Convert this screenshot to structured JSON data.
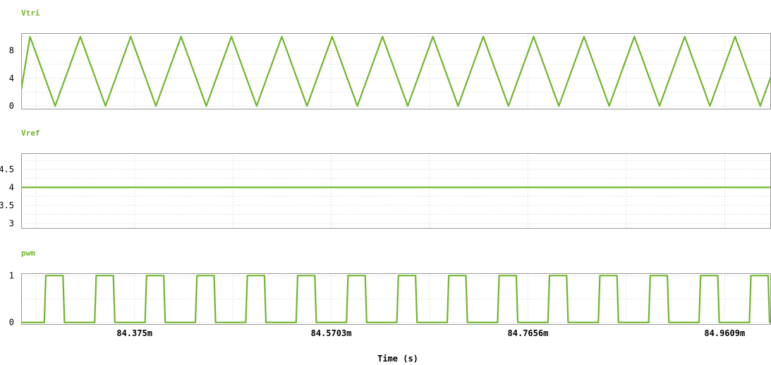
{
  "colors": {
    "trace": "#6fb62c",
    "title": "#6fb62c",
    "frame": "#9a9a9a",
    "grid": "#e4e4e4",
    "background": "#ffffff"
  },
  "chart_data": [
    {
      "type": "line",
      "title": "Vtri",
      "yticks": [
        0,
        4,
        8
      ],
      "ylim": [
        -0.5,
        10.5
      ],
      "grid": true,
      "series": [
        {
          "shape": "triangle",
          "min": 0,
          "max": 10,
          "period_ms": 0.05,
          "phase_ms": 84.27125,
          "start_value": 2.3
        }
      ]
    },
    {
      "type": "line",
      "title": "Vref",
      "yticks": [
        3,
        3.5,
        4,
        4.5
      ],
      "ytick_labels": [
        "3",
        "3.5",
        "4",
        "4.5"
      ],
      "ylim": [
        2.85,
        4.95
      ],
      "grid": true,
      "series": [
        {
          "shape": "constant",
          "value": 4
        }
      ]
    },
    {
      "type": "line",
      "title": "pwm",
      "yticks": [
        0,
        1
      ],
      "ylim": [
        -0.05,
        1.05
      ],
      "grid": true,
      "series": [
        {
          "shape": "pwm",
          "low": 0,
          "high": 1,
          "period_ms": 0.05,
          "high_ms": 0.017,
          "first_rise_ms": 84.287
        }
      ]
    }
  ],
  "xaxis": {
    "label": "Time (s)",
    "xlim_ms": [
      84.2625,
      85.0069
    ],
    "ticks": [
      84.375,
      84.5703,
      84.7656,
      84.9609
    ],
    "tick_labels": [
      "84.375m",
      "84.5703m",
      "84.7656m",
      "84.9609m"
    ]
  }
}
